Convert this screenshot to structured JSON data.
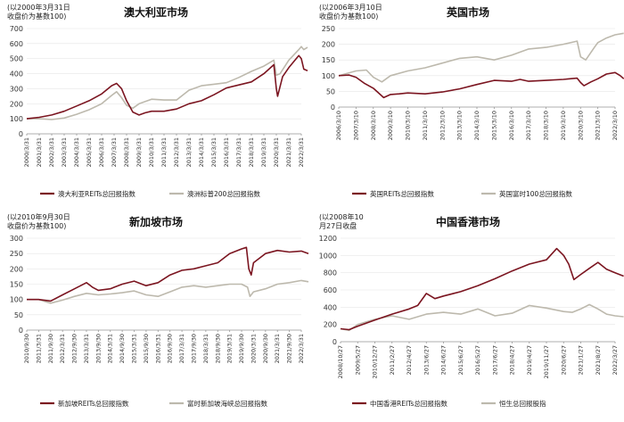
{
  "colors": {
    "reit": "#7b1520",
    "index": "#bdb9ad"
  },
  "chart_data": [
    {
      "type": "line",
      "title": "澳大利亚市场",
      "note": [
        "(以2000年3月31日",
        "收盘价为基数100)"
      ],
      "ylim": [
        0,
        700
      ],
      "yticks": [
        0,
        100,
        200,
        300,
        400,
        500,
        600,
        700
      ],
      "xticks": [
        "2000/3/31",
        "2001/3/31",
        "2002/3/31",
        "2003/3/31",
        "2004/3/31",
        "2005/3/31",
        "2006/3/31",
        "2007/3/31",
        "2008/3/31",
        "2009/3/31",
        "2010/3/31",
        "2011/3/31",
        "2012/3/31",
        "2013/3/31",
        "2014/3/31",
        "2015/3/31",
        "2016/3/31",
        "2017/3/31",
        "2018/3/31",
        "2019/3/31",
        "2020/3/31",
        "2021/3/31",
        "2022/3/31"
      ],
      "series": [
        {
          "name": "澳大利亚REITs总回报指数",
          "color": "reit",
          "values": [
            [
              0,
              100
            ],
            [
              1,
              110
            ],
            [
              2,
              125
            ],
            [
              3,
              150
            ],
            [
              4,
              185
            ],
            [
              5,
              220
            ],
            [
              6,
              265
            ],
            [
              6.8,
              320
            ],
            [
              7.2,
              335
            ],
            [
              7.6,
              300
            ],
            [
              8,
              220
            ],
            [
              8.5,
              145
            ],
            [
              9,
              125
            ],
            [
              9.5,
              140
            ],
            [
              10,
              150
            ],
            [
              11,
              150
            ],
            [
              12,
              165
            ],
            [
              13,
              200
            ],
            [
              14,
              220
            ],
            [
              15,
              260
            ],
            [
              16,
              305
            ],
            [
              17,
              325
            ],
            [
              18,
              345
            ],
            [
              19,
              400
            ],
            [
              19.8,
              460
            ],
            [
              20,
              300
            ],
            [
              20.1,
              250
            ],
            [
              20.5,
              380
            ],
            [
              21,
              440
            ],
            [
              21.8,
              520
            ],
            [
              22,
              500
            ],
            [
              22.2,
              430
            ],
            [
              22.5,
              420
            ]
          ]
        },
        {
          "name": "澳洲标普200总回报指数",
          "color": "index",
          "values": [
            [
              0,
              100
            ],
            [
              1,
              100
            ],
            [
              2,
              95
            ],
            [
              3,
              105
            ],
            [
              4,
              130
            ],
            [
              5,
              160
            ],
            [
              6,
              200
            ],
            [
              6.8,
              255
            ],
            [
              7.2,
              280
            ],
            [
              7.6,
              240
            ],
            [
              8,
              190
            ],
            [
              8.5,
              170
            ],
            [
              9,
              200
            ],
            [
              10,
              230
            ],
            [
              11,
              225
            ],
            [
              12,
              225
            ],
            [
              13,
              290
            ],
            [
              14,
              320
            ],
            [
              15,
              330
            ],
            [
              16,
              340
            ],
            [
              17,
              375
            ],
            [
              18,
              415
            ],
            [
              19,
              450
            ],
            [
              19.8,
              490
            ],
            [
              20,
              390
            ],
            [
              20.3,
              400
            ],
            [
              21,
              490
            ],
            [
              21.8,
              560
            ],
            [
              22,
              580
            ],
            [
              22.2,
              560
            ],
            [
              22.5,
              575
            ]
          ]
        }
      ]
    },
    {
      "type": "line",
      "title": "英国市场",
      "note": [
        "(以2006年3月10日",
        "收盘价为基数100)"
      ],
      "ylim": [
        0,
        250
      ],
      "yticks": [
        0,
        50,
        100,
        150,
        200,
        250
      ],
      "xticks": [
        "2006/3/10",
        "2007/3/10",
        "2008/3/10",
        "2009/3/10",
        "2010/3/10",
        "2011/3/10",
        "2012/3/10",
        "2013/3/10",
        "2014/3/10",
        "2015/3/10",
        "2016/3/10",
        "2017/3/10",
        "2018/3/10",
        "2019/3/10",
        "2020/3/10",
        "2021/3/10",
        "2022/3/10"
      ],
      "series": [
        {
          "name": "英国REITs总回报指数",
          "color": "reit",
          "values": [
            [
              0,
              100
            ],
            [
              0.6,
              102
            ],
            [
              1,
              95
            ],
            [
              1.5,
              75
            ],
            [
              2,
              60
            ],
            [
              2.6,
              30
            ],
            [
              3,
              40
            ],
            [
              3.5,
              42
            ],
            [
              4,
              45
            ],
            [
              5,
              42
            ],
            [
              6,
              48
            ],
            [
              7,
              58
            ],
            [
              8,
              72
            ],
            [
              9,
              85
            ],
            [
              10,
              82
            ],
            [
              10.5,
              88
            ],
            [
              11,
              82
            ],
            [
              12,
              85
            ],
            [
              13,
              88
            ],
            [
              13.8,
              92
            ],
            [
              14,
              78
            ],
            [
              14.2,
              68
            ],
            [
              14.6,
              80
            ],
            [
              15,
              90
            ],
            [
              15.5,
              105
            ],
            [
              16,
              110
            ],
            [
              16.3,
              100
            ],
            [
              16.5,
              90
            ]
          ]
        },
        {
          "name": "英国富时100总回报指数",
          "color": "index",
          "values": [
            [
              0,
              100
            ],
            [
              1,
              115
            ],
            [
              1.6,
              118
            ],
            [
              2,
              95
            ],
            [
              2.5,
              80
            ],
            [
              3,
              100
            ],
            [
              4,
              115
            ],
            [
              5,
              125
            ],
            [
              6,
              140
            ],
            [
              7,
              155
            ],
            [
              8,
              160
            ],
            [
              9,
              150
            ],
            [
              10,
              165
            ],
            [
              11,
              185
            ],
            [
              12,
              190
            ],
            [
              13,
              200
            ],
            [
              13.8,
              210
            ],
            [
              14,
              160
            ],
            [
              14.3,
              150
            ],
            [
              14.8,
              190
            ],
            [
              15,
              205
            ],
            [
              15.5,
              220
            ],
            [
              16,
              230
            ],
            [
              16.5,
              235
            ]
          ]
        }
      ]
    },
    {
      "type": "line",
      "title": "新加坡市场",
      "note": [
        "(以2010年9月30日",
        "收盘价为基数100)"
      ],
      "ylim": [
        0,
        300
      ],
      "yticks": [
        0,
        50,
        100,
        150,
        200,
        250,
        300
      ],
      "xticks": [
        "2010/9/30",
        "2011/3/31",
        "2011/9/30",
        "2012/3/31",
        "2012/9/30",
        "2013/3/31",
        "2013/9/30",
        "2014/3/31",
        "2014/9/30",
        "2015/3/31",
        "2015/9/30",
        "2016/3/31",
        "2016/9/30",
        "2017/3/31",
        "2017/9/30",
        "2018/3/31",
        "2018/9/30",
        "2019/3/31",
        "2019/9/30",
        "2020/3/31",
        "2020/9/30",
        "2021/3/31",
        "2021/9/30",
        "2022/3/31"
      ],
      "series": [
        {
          "name": "新加坡REITs总回报指数",
          "color": "reit",
          "values": [
            [
              0,
              100
            ],
            [
              1,
              100
            ],
            [
              2,
              95
            ],
            [
              3,
              115
            ],
            [
              4,
              135
            ],
            [
              5,
              155
            ],
            [
              5.5,
              140
            ],
            [
              6,
              130
            ],
            [
              7,
              135
            ],
            [
              8,
              150
            ],
            [
              9,
              160
            ],
            [
              10,
              145
            ],
            [
              11,
              155
            ],
            [
              12,
              180
            ],
            [
              13,
              195
            ],
            [
              14,
              200
            ],
            [
              15,
              210
            ],
            [
              16,
              220
            ],
            [
              17,
              250
            ],
            [
              18,
              265
            ],
            [
              18.4,
              270
            ],
            [
              18.6,
              200
            ],
            [
              18.8,
              180
            ],
            [
              19,
              220
            ],
            [
              20,
              250
            ],
            [
              21,
              260
            ],
            [
              22,
              255
            ],
            [
              23,
              258
            ],
            [
              23.6,
              250
            ]
          ]
        },
        {
          "name": "富时新加坡海峡总回报指数",
          "color": "index",
          "values": [
            [
              0,
              100
            ],
            [
              1,
              100
            ],
            [
              2,
              88
            ],
            [
              3,
              98
            ],
            [
              4,
              110
            ],
            [
              5,
              120
            ],
            [
              6,
              115
            ],
            [
              7,
              118
            ],
            [
              8,
              122
            ],
            [
              9,
              128
            ],
            [
              10,
              115
            ],
            [
              11,
              110
            ],
            [
              12,
              125
            ],
            [
              13,
              140
            ],
            [
              14,
              145
            ],
            [
              15,
              140
            ],
            [
              16,
              145
            ],
            [
              17,
              150
            ],
            [
              18,
              150
            ],
            [
              18.5,
              140
            ],
            [
              18.7,
              110
            ],
            [
              19,
              125
            ],
            [
              20,
              135
            ],
            [
              21,
              150
            ],
            [
              22,
              155
            ],
            [
              23,
              162
            ],
            [
              23.6,
              158
            ]
          ]
        }
      ]
    },
    {
      "type": "line",
      "title": "中国香港市场",
      "note": [
        "(以2008年10",
        "月27日收盘"
      ],
      "ylim": [
        0,
        1200
      ],
      "yticks": [
        0,
        200,
        400,
        600,
        800,
        1000,
        1200
      ],
      "xticks": [
        "2008/10/27",
        "2009/5/27",
        "2010/12/27",
        "2011/2/27",
        "2012/4/27",
        "2013/6/27",
        "2014/6/27",
        "2015/6/27",
        "2016/5/27",
        "2017/6/27",
        "2018/4/27",
        "2019/4/27",
        "2019/11/27",
        "2020/6/27",
        "2021/1/27",
        "2021/8/27",
        "2022/3/27"
      ],
      "series": [
        {
          "name": "中国香港REITs总回报指数",
          "color": "reit",
          "values": [
            [
              0,
              150
            ],
            [
              0.5,
              140
            ],
            [
              1,
              180
            ],
            [
              2,
              250
            ],
            [
              3,
              320
            ],
            [
              4,
              380
            ],
            [
              4.5,
              420
            ],
            [
              5,
              560
            ],
            [
              5.5,
              500
            ],
            [
              6,
              530
            ],
            [
              7,
              580
            ],
            [
              8,
              650
            ],
            [
              9,
              730
            ],
            [
              10,
              820
            ],
            [
              11,
              900
            ],
            [
              12,
              950
            ],
            [
              12.6,
              1080
            ],
            [
              13,
              1000
            ],
            [
              13.3,
              900
            ],
            [
              13.6,
              720
            ],
            [
              14,
              780
            ],
            [
              14.5,
              850
            ],
            [
              15,
              920
            ],
            [
              15.5,
              840
            ],
            [
              16,
              800
            ],
            [
              16.5,
              760
            ]
          ]
        },
        {
          "name": "恒生总回报股指",
          "color": "index",
          "values": [
            [
              0,
              150
            ],
            [
              0.5,
              130
            ],
            [
              1,
              200
            ],
            [
              2,
              260
            ],
            [
              3,
              300
            ],
            [
              4,
              260
            ],
            [
              5,
              320
            ],
            [
              6,
              340
            ],
            [
              7,
              320
            ],
            [
              8,
              380
            ],
            [
              9,
              300
            ],
            [
              10,
              330
            ],
            [
              11,
              420
            ],
            [
              12,
              390
            ],
            [
              13,
              350
            ],
            [
              13.5,
              340
            ],
            [
              14,
              380
            ],
            [
              14.5,
              430
            ],
            [
              15,
              380
            ],
            [
              15.5,
              320
            ],
            [
              16,
              300
            ],
            [
              16.5,
              290
            ]
          ]
        }
      ]
    }
  ]
}
